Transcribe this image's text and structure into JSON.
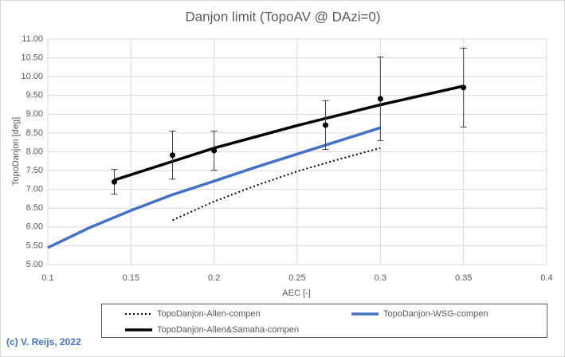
{
  "chart_data": {
    "type": "line",
    "title": "Danjon limit (TopoAV @ DAzi=0)",
    "x_label": "AEC [-]",
    "y_label": "TopoDanjon [deg]",
    "footer": "(c) V. Reijs, 2022",
    "xlim": [
      0.1,
      0.4
    ],
    "xticks": [
      0.1,
      0.15,
      0.2,
      0.25,
      0.3,
      0.35,
      0.4
    ],
    "ylim": [
      5,
      11
    ],
    "yticks": [
      {
        "value": 5,
        "label": "5.00"
      },
      {
        "value": 5.5,
        "label": "5.50"
      },
      {
        "value": 6,
        "label": "6.00"
      },
      {
        "value": 6.5,
        "label": "6.50"
      },
      {
        "value": 7,
        "label": "7.00"
      },
      {
        "value": 7.5,
        "label": "7.50"
      },
      {
        "value": 8,
        "label": "8.00"
      },
      {
        "value": 8.5,
        "label": "8.50"
      },
      {
        "value": 9,
        "label": "9.00"
      },
      {
        "value": 9.5,
        "label": "9.50"
      },
      {
        "value": 10,
        "label": "10.00"
      },
      {
        "value": 10.5,
        "label": "10.50"
      },
      {
        "value": 11,
        "label": "11.00"
      }
    ],
    "grid": true,
    "legend": "bottom",
    "series": [
      {
        "name": "TopoDanjon-Allen-compen",
        "color": "#000000",
        "line_style": "dotted",
        "x": [
          0.175,
          0.2,
          0.225,
          0.25,
          0.275,
          0.3
        ],
        "values": [
          6.18,
          6.68,
          7.1,
          7.48,
          7.8,
          8.1
        ]
      },
      {
        "name": "TopoDanjon-WSG-compen",
        "color": "#4472c4",
        "line_style": "solid",
        "x": [
          0.1,
          0.125,
          0.15,
          0.175,
          0.2,
          0.225,
          0.25,
          0.275,
          0.3
        ],
        "values": [
          5.45,
          5.98,
          6.44,
          6.86,
          7.22,
          7.59,
          7.94,
          8.29,
          8.64
        ]
      },
      {
        "name": "TopoDanjon-Allen&Samaha-compen",
        "color": "#000000",
        "line_style": "solid",
        "x": [
          0.14,
          0.2,
          0.25,
          0.3,
          0.35
        ],
        "values": [
          7.25,
          8.1,
          8.7,
          9.25,
          9.75
        ]
      },
      {
        "type": "scatter",
        "color": "#000000",
        "x": [
          0.14,
          0.175,
          0.2,
          0.267,
          0.3,
          0.35
        ],
        "values": [
          7.2,
          7.91,
          8.03,
          8.71,
          9.41,
          9.71
        ],
        "errors": [
          0.33,
          0.64,
          0.52,
          0.65,
          1.11,
          1.05
        ]
      }
    ]
  }
}
